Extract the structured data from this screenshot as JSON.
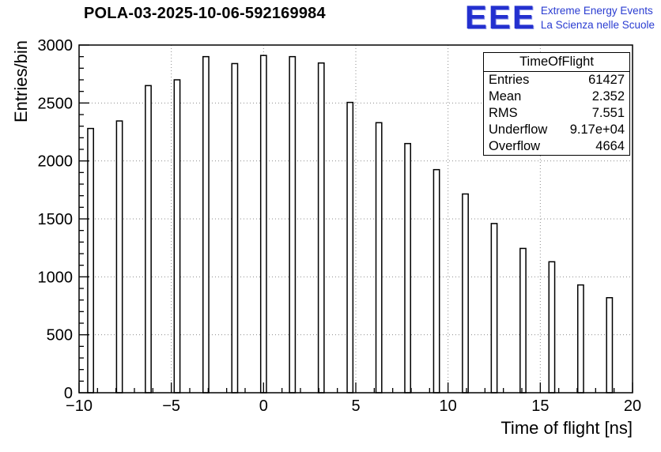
{
  "logo": {
    "text": "EEE",
    "line1": "Extreme Energy Events",
    "line2": "La Scienza nelle Scuole",
    "color": "#2330cf"
  },
  "stats": {
    "title": "TimeOfFlight",
    "rows": [
      {
        "label": "Entries",
        "value": "61427"
      },
      {
        "label": "Mean",
        "value": "2.352"
      },
      {
        "label": "RMS",
        "value": "7.551"
      },
      {
        "label": "Underflow",
        "value": "9.17e+04"
      },
      {
        "label": "Overflow",
        "value": "4664"
      }
    ]
  },
  "chart_data": {
    "type": "bar",
    "title": "POLA-03-2025-10-06-592169984",
    "xlabel": "Time of flight [ns]",
    "ylabel": "Entries/bin",
    "xlim": [
      -10,
      20
    ],
    "ylim": [
      0,
      3000
    ],
    "x_ticks": [
      -10,
      -5,
      0,
      5,
      10,
      15,
      20
    ],
    "x_tick_labels": [
      "−10",
      "−5",
      "0",
      "5",
      "10",
      "15",
      "20"
    ],
    "y_ticks": [
      0,
      500,
      1000,
      1500,
      2000,
      2500,
      3000
    ],
    "y_tick_labels": [
      "0",
      "500",
      "1000",
      "1500",
      "2000",
      "2500",
      "3000"
    ],
    "x_minor_step": 1,
    "y_minor_step": 100,
    "grid": true,
    "grid_color": "#8c8c8c",
    "bar_style": "hollow-spike",
    "bar_width": 0.3125,
    "bar_fill": "#ffffff",
    "bar_stroke": "#000000",
    "x": [
      -9.375,
      -7.8125,
      -6.25,
      -4.6875,
      -3.125,
      -1.5625,
      0,
      1.5625,
      3.125,
      4.6875,
      6.25,
      7.8125,
      9.375,
      10.9375,
      12.5,
      14.0625,
      15.625,
      17.1875,
      18.75
    ],
    "values": [
      2280,
      2345,
      2650,
      2700,
      2900,
      2840,
      2910,
      2900,
      2845,
      2505,
      2330,
      2150,
      1925,
      1715,
      1460,
      1245,
      1130,
      930,
      820
    ]
  }
}
